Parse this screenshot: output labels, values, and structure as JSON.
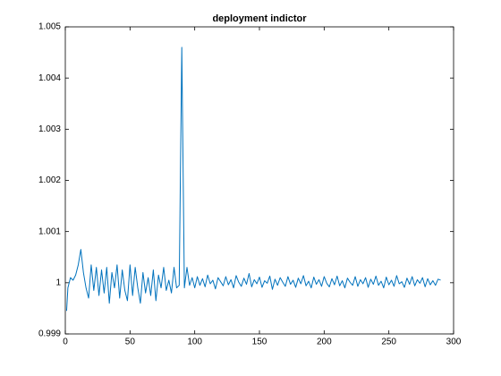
{
  "chart_data": {
    "type": "line",
    "title": "deployment indictor",
    "x": [
      1,
      2,
      4,
      6,
      8,
      10,
      12,
      14,
      16,
      18,
      20,
      22,
      24,
      26,
      28,
      30,
      32,
      34,
      36,
      38,
      40,
      42,
      44,
      46,
      48,
      50,
      52,
      54,
      56,
      58,
      60,
      62,
      64,
      66,
      68,
      70,
      72,
      74,
      76,
      78,
      80,
      82,
      84,
      86,
      88,
      90,
      92,
      94,
      96,
      98,
      100,
      102,
      104,
      106,
      108,
      110,
      112,
      114,
      116,
      118,
      120,
      122,
      124,
      126,
      128,
      130,
      132,
      134,
      136,
      138,
      140,
      142,
      144,
      146,
      148,
      150,
      152,
      154,
      156,
      158,
      160,
      162,
      164,
      166,
      168,
      170,
      172,
      174,
      176,
      178,
      180,
      182,
      184,
      186,
      188,
      190,
      192,
      194,
      196,
      198,
      200,
      202,
      204,
      206,
      208,
      210,
      212,
      214,
      216,
      218,
      220,
      222,
      224,
      226,
      228,
      230,
      232,
      234,
      236,
      238,
      240,
      242,
      244,
      246,
      248,
      250,
      252,
      254,
      256,
      258,
      260,
      262,
      264,
      266,
      268,
      270,
      272,
      274,
      276,
      278,
      280,
      282,
      284,
      286,
      288,
      290
    ],
    "series": [
      {
        "color": "#0072bd",
        "values": [
          0.99945,
          0.9999,
          1.0001,
          1.00005,
          1.00015,
          1.00035,
          1.00065,
          1.0002,
          0.9999,
          0.9997,
          1.00035,
          0.99985,
          1.0003,
          0.99975,
          1.00025,
          0.9998,
          1.0003,
          0.9996,
          1.0002,
          0.9999,
          1.00035,
          0.9997,
          1.00025,
          0.99985,
          0.99965,
          1.00035,
          0.99975,
          1.0003,
          0.9999,
          0.9996,
          1.0002,
          0.9998,
          1.0001,
          0.99975,
          1.00025,
          0.99965,
          1.00015,
          0.9999,
          1.0003,
          0.99985,
          1.00005,
          0.9998,
          1.0003,
          0.9999,
          0.99995,
          1.0046,
          0.9999,
          1.0003,
          0.99995,
          1.0001,
          0.9999,
          1.00012,
          0.99995,
          1.00008,
          0.99992,
          1.00015,
          0.99998,
          1.00005,
          0.99988,
          1.0001,
          1.00002,
          0.99994,
          1.00012,
          0.99996,
          1.00006,
          0.9999,
          1.00014,
          1.00001,
          0.99993,
          1.00009,
          0.99997,
          1.00018,
          0.99992,
          1.00006,
          0.99998,
          1.00011,
          0.99991,
          1.00004,
          0.99999,
          1.00013,
          0.99987,
          1.00007,
          0.99995,
          1.0001,
          1.00001,
          0.99993,
          1.00012,
          0.99997,
          1.00005,
          0.99991,
          1.00009,
          0.99998,
          1.00014,
          0.99994,
          1.00003,
          0.9999,
          1.00011,
          0.99997,
          1.00006,
          0.99993,
          1.00012,
          0.99999,
          0.99992,
          1.00008,
          0.99996,
          1.00013,
          0.99994,
          1.00004,
          0.9999,
          1.00009,
          1.00001,
          0.99995,
          1.00012,
          0.99993,
          1.00006,
          0.99998,
          1.0001,
          0.99991,
          1.00007,
          0.99997,
          1.00013,
          0.99995,
          1.00003,
          0.9999,
          1.00011,
          0.99996,
          1.00005,
          0.99993,
          1.00014,
          0.99998,
          1.00002,
          0.99991,
          1.00009,
          0.99997,
          1.00012,
          0.99994,
          1.00006,
          0.99999,
          1.0001,
          0.99992,
          1.00008,
          0.99996,
          1.00004,
          0.99995,
          1.00007,
          1.00005
        ]
      }
    ],
    "xlim": [
      0,
      300
    ],
    "xticks": [
      0,
      50,
      100,
      150,
      200,
      250,
      300
    ],
    "ylim": [
      0.999,
      1.005
    ],
    "yticks": [
      0.999,
      1,
      1.001,
      1.002,
      1.003,
      1.004,
      1.005
    ]
  }
}
